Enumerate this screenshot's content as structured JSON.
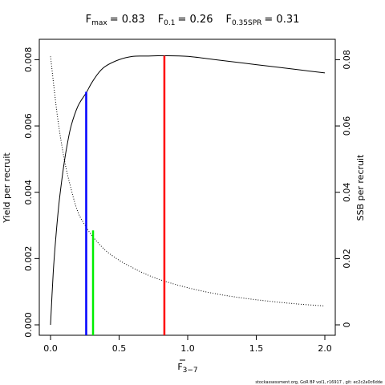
{
  "chart_data": {
    "type": "line",
    "title": {
      "fmax_symbol": "F",
      "fmax_sub": "max",
      "fmax_value": "= 0.83",
      "f01_symbol": "F",
      "f01_sub": "0.1",
      "f01_value": "= 0.26",
      "f35_symbol": "F",
      "f35_sub": "0.35SPR",
      "f35_value": "= 0.31"
    },
    "xlabel": {
      "symbol": "F",
      "sub": "3−7"
    },
    "ylabel_left": "Yield per recruit",
    "ylabel_right": "SSB per recruit",
    "xlim": [
      0,
      2
    ],
    "ylim_left": [
      0,
      0.0083
    ],
    "ylim_right": [
      0,
      0.083
    ],
    "x_ticks": [
      "0.0",
      "0.5",
      "1.0",
      "1.5",
      "2.0"
    ],
    "y_ticks_left": [
      "0.000",
      "0.002",
      "0.004",
      "0.006",
      "0.008"
    ],
    "y_ticks_right": [
      "0",
      "0.02",
      "0.04",
      "0.06",
      "0.08"
    ],
    "series": [
      {
        "axis": "left",
        "style": "solid",
        "color": "#000000",
        "x": [
          0.0,
          0.02,
          0.04,
          0.06,
          0.08,
          0.1,
          0.12,
          0.15,
          0.2,
          0.26,
          0.3,
          0.35,
          0.4,
          0.5,
          0.6,
          0.7,
          0.83,
          1.0,
          1.2,
          1.4,
          1.6,
          1.8,
          2.0
        ],
        "y": [
          0.0,
          0.0016,
          0.0027,
          0.0036,
          0.0043,
          0.0049,
          0.0054,
          0.006,
          0.0066,
          0.007,
          0.0073,
          0.0076,
          0.0078,
          0.008,
          0.0081,
          0.00811,
          0.00812,
          0.0081,
          0.008,
          0.0079,
          0.0078,
          0.0077,
          0.0076
        ]
      },
      {
        "axis": "right",
        "style": "dotted",
        "color": "#000000",
        "x": [
          0.0,
          0.05,
          0.1,
          0.15,
          0.2,
          0.26,
          0.31,
          0.4,
          0.5,
          0.6,
          0.7,
          0.83,
          1.0,
          1.2,
          1.4,
          1.6,
          1.8,
          2.0
        ],
        "y": [
          0.081,
          0.063,
          0.05,
          0.041,
          0.034,
          0.0295,
          0.0265,
          0.0225,
          0.0195,
          0.0172,
          0.0152,
          0.0132,
          0.0112,
          0.0094,
          0.0081,
          0.0071,
          0.0063,
          0.0057
        ]
      }
    ],
    "reference_lines": [
      {
        "name": "F0.1",
        "x": 0.26,
        "y_left": 0.00703,
        "color": "#0000ff"
      },
      {
        "name": "F0.35SPR",
        "x": 0.31,
        "y_left": 0.00285,
        "color": "#00ee00"
      },
      {
        "name": "Fmax",
        "x": 0.83,
        "y_left": 0.00812,
        "color": "#ff0000"
      }
    ],
    "grid": false,
    "footer": "stockassessment.org, GoR BP vol1, r16917 , git: ec2c2a0c6dde"
  }
}
